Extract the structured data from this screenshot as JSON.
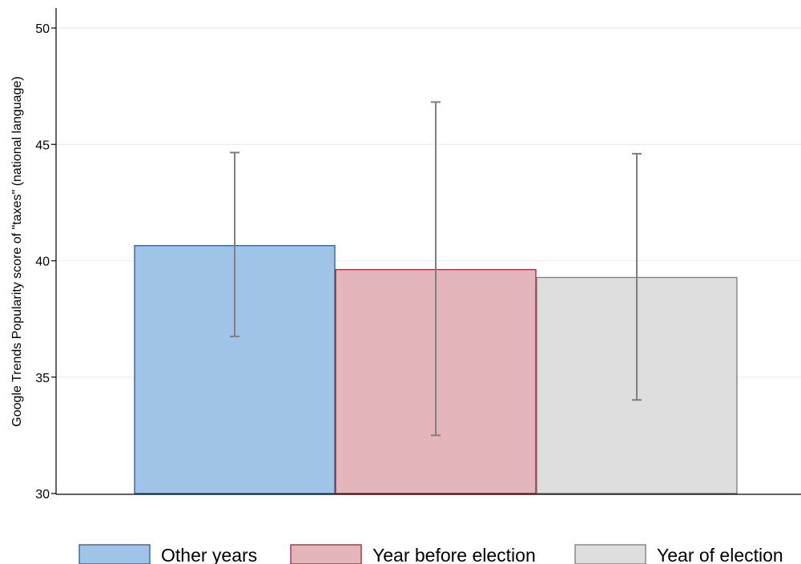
{
  "chart_data": {
    "type": "bar",
    "title": "",
    "xlabel": "",
    "ylabel": "Google Trends Popularity score of \"taxes\" (national language)",
    "ylim": [
      30,
      50
    ],
    "yticks": [
      30,
      35,
      40,
      45,
      50
    ],
    "grid": true,
    "legend_position": "bottom",
    "categories": [
      "Other years",
      "Year before election",
      "Year of election"
    ],
    "series": [
      {
        "name": "Other years",
        "value": 40.65,
        "ci_low": 36.75,
        "ci_high": 44.65,
        "fill": "#9fc4e8",
        "stroke": "#2a5b94"
      },
      {
        "name": "Year before election",
        "value": 39.62,
        "ci_low": 32.5,
        "ci_high": 46.82,
        "fill": "#e4b6bb",
        "stroke": "#9b2335"
      },
      {
        "name": "Year of election",
        "value": 39.28,
        "ci_low": 34.02,
        "ci_high": 44.6,
        "fill": "#dedede",
        "stroke": "#7a7a7a"
      }
    ],
    "errorbar_color": "#7f7f7f",
    "grid_color": "#e4f1ef"
  }
}
